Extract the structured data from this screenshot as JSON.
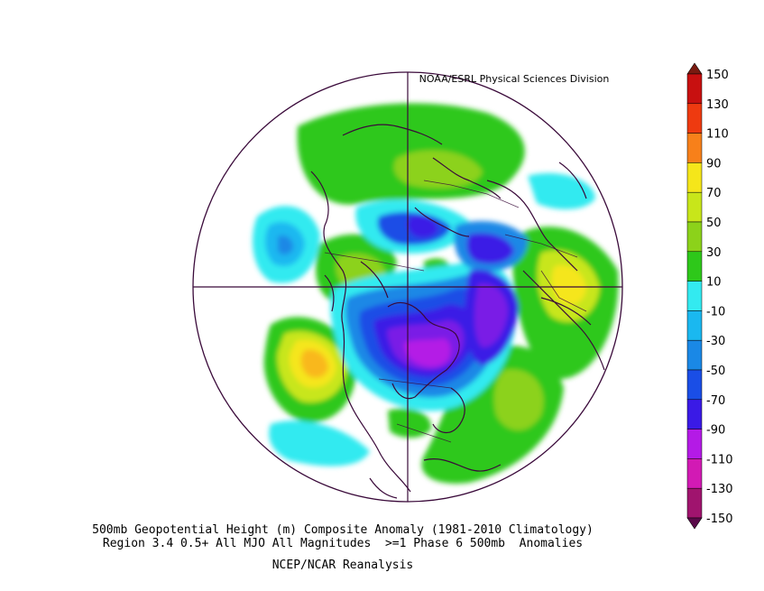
{
  "header": {
    "source": "NOAA/ESRL Physical Sciences Division"
  },
  "captions": {
    "line1": "500mb Geopotential Height (m) Composite Anomaly (1981-2010 Climatology)",
    "line2": "Region 3.4 0.5+ All MJO All Magnitudes  >=1 Phase 6 500mb  Anomalies",
    "line3": "NCEP/NCAR Reanalysis"
  },
  "colorbar": {
    "labels": [
      "150",
      "130",
      "110",
      "90",
      "70",
      "50",
      "30",
      "10",
      "-10",
      "-30",
      "-50",
      "-70",
      "-90",
      "-110",
      "-130",
      "-150"
    ],
    "colors": [
      "#7a1a10",
      "#c81010",
      "#ee3a10",
      "#f7801a",
      "#f9b81a",
      "#f5e61a",
      "#c8e61a",
      "#8cd21a",
      "#2ec81a",
      "#ffffff",
      "#33eaf0",
      "#1ab8f0",
      "#1a88e6",
      "#1a4ee6",
      "#3a1ae6",
      "#7a1ae6",
      "#b41ae6",
      "#d21ab4",
      "#a0146e",
      "#5a0a4a"
    ]
  },
  "map": {
    "projection": "polar stereographic",
    "anomalies": [
      {
        "region": "Hudson Bay / central Canada",
        "sign": "negative",
        "peak": -110
      },
      {
        "region": "Arctic Ocean",
        "sign": "negative",
        "peak": -70
      },
      {
        "region": "Central Siberia",
        "sign": "negative",
        "peak": -70
      },
      {
        "region": "Northeast Pacific",
        "sign": "positive",
        "peak": 70
      },
      {
        "region": "Western Atlantic",
        "sign": "positive",
        "peak": 50
      },
      {
        "region": "Eastern Asia / North Pacific",
        "sign": "positive",
        "peak": 50
      },
      {
        "region": "Western Europe",
        "sign": "positive",
        "peak": 30
      },
      {
        "region": "Eastern Atlantic",
        "sign": "negative",
        "peak": -50
      }
    ]
  }
}
